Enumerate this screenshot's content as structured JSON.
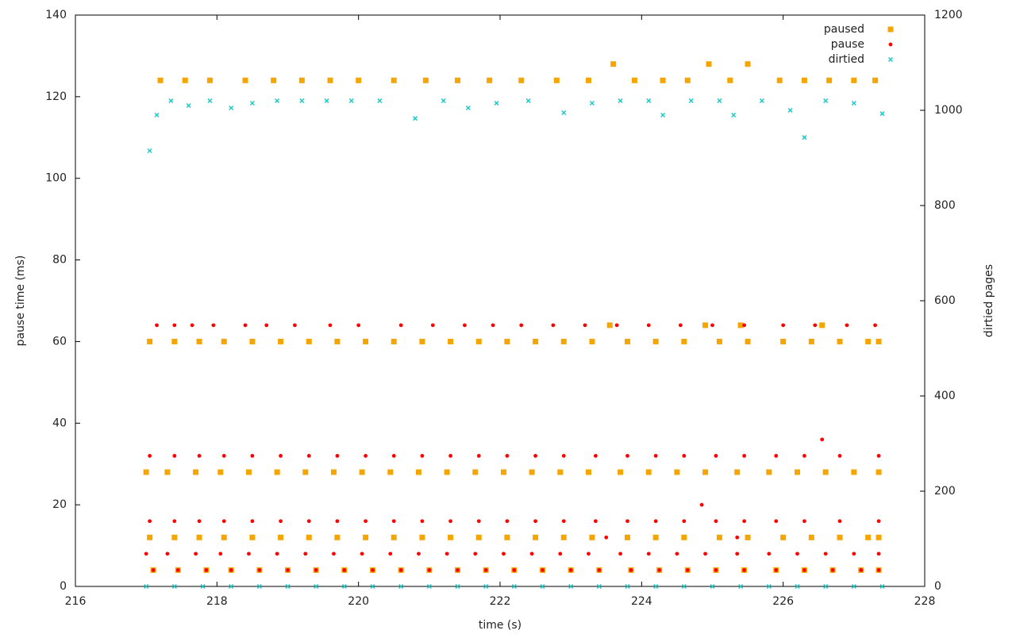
{
  "chart_data": {
    "type": "scatter",
    "x_label": "time (s)",
    "y_label": "pause time (ms)",
    "y2_label": "dirtied pages",
    "xlim": [
      216,
      228
    ],
    "xticks": [
      216,
      218,
      220,
      222,
      224,
      226,
      228
    ],
    "ylim": [
      0,
      140
    ],
    "yticks": [
      0,
      20,
      40,
      60,
      80,
      100,
      120,
      140
    ],
    "y2lim": [
      0,
      1200
    ],
    "y2ticks": [
      0,
      200,
      400,
      600,
      800,
      1000,
      1200
    ],
    "legend": "top-right",
    "grid": false,
    "series": [
      {
        "name": "paused",
        "color": "#f5a500",
        "marker": "square",
        "x": [
          217.2,
          217.55,
          217.9,
          218.4,
          218.8,
          219.2,
          219.6,
          220.0,
          220.5,
          220.95,
          221.4,
          221.85,
          222.3,
          222.8,
          223.25,
          223.9,
          224.3,
          224.65,
          225.25,
          225.95,
          226.3,
          226.65,
          227.0,
          227.3,
          223.6,
          224.95,
          225.5,
          223.55,
          224.9,
          225.4,
          226.55,
          217.05,
          217.4,
          217.75,
          218.1,
          218.5,
          218.9,
          219.3,
          219.7,
          220.1,
          220.5,
          220.9,
          221.3,
          221.7,
          222.1,
          222.5,
          222.9,
          223.3,
          223.8,
          224.2,
          224.6,
          225.1,
          225.5,
          226.0,
          226.4,
          226.8,
          227.2,
          227.35,
          217.0,
          217.3,
          217.7,
          218.05,
          218.45,
          218.85,
          219.25,
          219.65,
          220.05,
          220.45,
          220.85,
          221.25,
          221.65,
          222.05,
          222.45,
          222.85,
          223.25,
          223.7,
          224.1,
          224.5,
          224.9,
          225.35,
          225.8,
          226.2,
          226.6,
          227.0,
          227.35,
          217.05,
          217.4,
          217.75,
          218.1,
          218.5,
          218.9,
          219.3,
          219.7,
          220.1,
          220.5,
          220.9,
          221.3,
          221.7,
          222.1,
          222.5,
          222.9,
          223.3,
          223.8,
          224.2,
          224.6,
          225.1,
          225.5,
          226.0,
          226.4,
          226.8,
          227.2,
          227.35,
          217.1,
          217.45,
          217.85,
          218.2,
          218.6,
          219.0,
          219.4,
          219.8,
          220.2,
          220.6,
          221.0,
          221.4,
          221.8,
          222.2,
          222.6,
          223.0,
          223.4,
          223.85,
          224.25,
          224.65,
          225.05,
          225.45,
          225.9,
          226.3,
          226.7,
          227.1,
          227.35
        ],
        "values": [
          124,
          124,
          124,
          124,
          124,
          124,
          124,
          124,
          124,
          124,
          124,
          124,
          124,
          124,
          124,
          124,
          124,
          124,
          124,
          124,
          124,
          124,
          124,
          124,
          128,
          128,
          128,
          64,
          64,
          64,
          64,
          60,
          60,
          60,
          60,
          60,
          60,
          60,
          60,
          60,
          60,
          60,
          60,
          60,
          60,
          60,
          60,
          60,
          60,
          60,
          60,
          60,
          60,
          60,
          60,
          60,
          60,
          60,
          28,
          28,
          28,
          28,
          28,
          28,
          28,
          28,
          28,
          28,
          28,
          28,
          28,
          28,
          28,
          28,
          28,
          28,
          28,
          28,
          28,
          28,
          28,
          28,
          28,
          28,
          28,
          12,
          12,
          12,
          12,
          12,
          12,
          12,
          12,
          12,
          12,
          12,
          12,
          12,
          12,
          12,
          12,
          12,
          12,
          12,
          12,
          12,
          12,
          12,
          12,
          12,
          12,
          12,
          4,
          4,
          4,
          4,
          4,
          4,
          4,
          4,
          4,
          4,
          4,
          4,
          4,
          4,
          4,
          4,
          4,
          4,
          4,
          4,
          4,
          4,
          4,
          4,
          4,
          4,
          4
        ]
      },
      {
        "name": "pause",
        "color": "#ff0000",
        "marker": "circle",
        "x": [
          217.15,
          217.4,
          217.65,
          217.95,
          218.4,
          218.7,
          219.1,
          219.6,
          220.0,
          220.6,
          221.05,
          221.5,
          221.9,
          222.3,
          222.75,
          223.2,
          223.65,
          224.1,
          224.55,
          225.0,
          225.45,
          226.0,
          226.45,
          226.9,
          227.3,
          217.05,
          217.4,
          217.75,
          218.1,
          218.5,
          218.9,
          219.3,
          219.7,
          220.1,
          220.5,
          220.9,
          221.3,
          221.7,
          222.1,
          222.5,
          222.9,
          223.35,
          223.8,
          224.2,
          224.6,
          225.05,
          225.45,
          225.9,
          226.3,
          226.8,
          227.35,
          217.05,
          217.4,
          217.75,
          218.1,
          218.5,
          218.9,
          219.3,
          219.7,
          220.1,
          220.5,
          220.9,
          221.3,
          221.7,
          222.1,
          222.5,
          222.9,
          223.35,
          223.8,
          224.2,
          224.6,
          225.05,
          225.45,
          225.9,
          226.3,
          226.8,
          227.35,
          217.0,
          217.3,
          217.7,
          218.05,
          218.45,
          218.85,
          219.25,
          219.65,
          220.05,
          220.45,
          220.85,
          221.25,
          221.65,
          222.05,
          222.45,
          222.85,
          223.25,
          223.7,
          224.1,
          224.5,
          224.9,
          225.35,
          225.8,
          226.2,
          226.6,
          227.0,
          227.35,
          217.1,
          217.45,
          217.85,
          218.2,
          218.6,
          219.0,
          219.4,
          219.8,
          220.2,
          220.6,
          221.0,
          221.4,
          221.8,
          222.2,
          222.6,
          223.0,
          223.4,
          223.85,
          224.25,
          224.65,
          225.05,
          225.45,
          225.9,
          226.3,
          226.7,
          227.1,
          227.35,
          226.55,
          224.85,
          223.5,
          225.35
        ],
        "values": [
          64,
          64,
          64,
          64,
          64,
          64,
          64,
          64,
          64,
          64,
          64,
          64,
          64,
          64,
          64,
          64,
          64,
          64,
          64,
          64,
          64,
          64,
          64,
          64,
          64,
          32,
          32,
          32,
          32,
          32,
          32,
          32,
          32,
          32,
          32,
          32,
          32,
          32,
          32,
          32,
          32,
          32,
          32,
          32,
          32,
          32,
          32,
          32,
          32,
          32,
          32,
          16,
          16,
          16,
          16,
          16,
          16,
          16,
          16,
          16,
          16,
          16,
          16,
          16,
          16,
          16,
          16,
          16,
          16,
          16,
          16,
          16,
          16,
          16,
          16,
          16,
          16,
          8,
          8,
          8,
          8,
          8,
          8,
          8,
          8,
          8,
          8,
          8,
          8,
          8,
          8,
          8,
          8,
          8,
          8,
          8,
          8,
          8,
          8,
          8,
          8,
          8,
          8,
          8,
          4,
          4,
          4,
          4,
          4,
          4,
          4,
          4,
          4,
          4,
          4,
          4,
          4,
          4,
          4,
          4,
          4,
          4,
          4,
          4,
          4,
          4,
          4,
          4,
          4,
          4,
          4,
          36,
          20,
          12,
          12
        ]
      },
      {
        "name": "dirtied",
        "color": "#1fc8c8",
        "marker": "cross",
        "axis": "y2",
        "x": [
          217.05,
          217.15,
          217.35,
          217.6,
          217.9,
          218.2,
          218.5,
          218.85,
          219.2,
          219.55,
          219.9,
          220.3,
          220.8,
          221.2,
          221.55,
          221.95,
          222.4,
          222.9,
          223.3,
          223.7,
          224.1,
          224.3,
          224.7,
          225.1,
          225.3,
          225.7,
          226.1,
          226.3,
          226.6,
          227.0,
          227.4,
          217.0,
          217.4,
          217.8,
          218.2,
          218.6,
          219.0,
          219.4,
          219.8,
          220.2,
          220.6,
          221.0,
          221.4,
          221.8,
          222.2,
          222.6,
          223.0,
          223.4,
          223.8,
          224.2,
          224.6,
          225.0,
          225.4,
          225.8,
          226.2,
          226.6,
          227.0,
          227.4
        ],
        "values": [
          915,
          990,
          1020,
          1010,
          1020,
          1005,
          1015,
          1020,
          1020,
          1020,
          1020,
          1020,
          983,
          1020,
          1005,
          1015,
          1020,
          995,
          1015,
          1020,
          1020,
          990,
          1020,
          1020,
          990,
          1020,
          1000,
          943,
          1020,
          1015,
          993,
          0,
          0,
          0,
          0,
          0,
          0,
          0,
          0,
          0,
          0,
          0,
          0,
          0,
          0,
          0,
          0,
          0,
          0,
          0,
          0,
          0,
          0,
          0,
          0,
          0,
          0,
          0
        ]
      }
    ]
  }
}
